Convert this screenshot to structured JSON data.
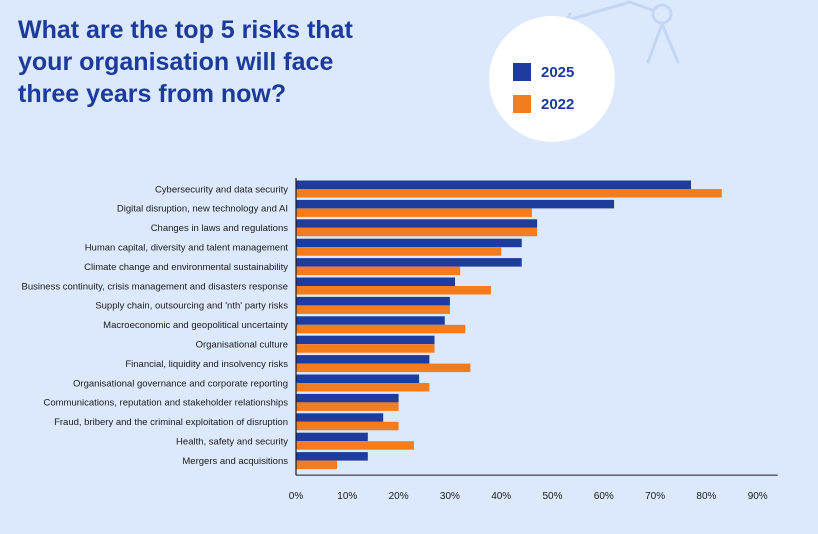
{
  "title": "What are the top 5 risks that your organisation will face three years from now?",
  "colors": {
    "series_2025": "#1d3c9e",
    "series_2022": "#f47c1c",
    "accent": "#1a3a9c"
  },
  "legend": {
    "items": [
      "2025",
      "2022"
    ]
  },
  "chart_data": {
    "type": "bar",
    "orientation": "horizontal",
    "categories": [
      "Cybersecurity and data security",
      "Digital disruption, new technology and AI",
      "Changes in laws and regulations",
      "Human capital, diversity and talent management",
      "Climate change and environmental sustainability",
      "Business continuity, crisis management and disasters response",
      "Supply chain, outsourcing and 'nth' party risks",
      "Macroeconomic and geopolitical uncertainty",
      "Organisational culture",
      "Financial, liquidity and insolvency risks",
      "Organisational governance and corporate reporting",
      "Communications, reputation and stakeholder relationships",
      "Fraud, bribery and the criminal exploitation of disruption",
      "Health, safety and security",
      "Mergers and acquisitions"
    ],
    "series": [
      {
        "name": "2025",
        "values": [
          77,
          62,
          47,
          44,
          44,
          31,
          30,
          29,
          27,
          26,
          24,
          20,
          17,
          14,
          14
        ]
      },
      {
        "name": "2022",
        "values": [
          83,
          46,
          47,
          40,
          32,
          38,
          30,
          33,
          27,
          34,
          26,
          20,
          20,
          23,
          8
        ]
      }
    ],
    "xlim": [
      0,
      90
    ],
    "xticks": [
      "0%",
      "10%",
      "20%",
      "30%",
      "40%",
      "50%",
      "60%",
      "70%",
      "80%",
      "90%"
    ],
    "grid": false,
    "legend_position": "top-right"
  }
}
